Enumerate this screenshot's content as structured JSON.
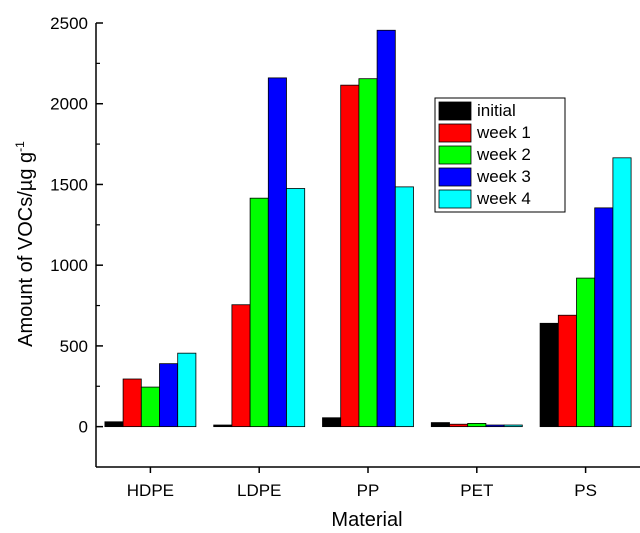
{
  "chart_data": {
    "type": "bar",
    "title": "",
    "xlabel": "Material",
    "ylabel": "Amount of VOCs/µg g",
    "ylabel_superscript": "-1",
    "categories": [
      "HDPE",
      "LDPE",
      "PP",
      "PET",
      "PS"
    ],
    "series": [
      {
        "name": "initial",
        "color": "#000000",
        "values": [
          30,
          10,
          55,
          25,
          640
        ]
      },
      {
        "name": "week 1",
        "color": "#ff0000",
        "values": [
          295,
          755,
          2115,
          15,
          690
        ]
      },
      {
        "name": "week 2",
        "color": "#00ff00",
        "values": [
          245,
          1415,
          2155,
          20,
          920
        ]
      },
      {
        "name": "week 3",
        "color": "#0000ff",
        "values": [
          390,
          2160,
          2455,
          10,
          1355
        ]
      },
      {
        "name": "week 4",
        "color": "#00ffff",
        "values": [
          455,
          1475,
          1485,
          10,
          1665
        ]
      }
    ],
    "ylim": [
      -250,
      2500
    ],
    "yticks": [
      0,
      500,
      1000,
      1500,
      2000,
      2500
    ],
    "legend_position": "upper-right",
    "grid": false
  }
}
